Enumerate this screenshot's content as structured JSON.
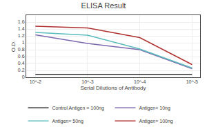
{
  "chart_data": {
    "type": "line",
    "title": "ELISA Result",
    "xlabel": "Serial Dilutions of Antibody",
    "ylabel": "O.D.",
    "x": [
      0.01,
      0.001,
      0.0001,
      1e-05
    ],
    "series": [
      {
        "name": "Control Antigen = 100ng",
        "color": "#2e2e2e",
        "values": [
          0.08,
          0.08,
          0.08,
          0.08
        ]
      },
      {
        "name": "Antigen= 10ng",
        "color": "#7b68b0",
        "values": [
          1.23,
          0.98,
          0.8,
          0.25
        ]
      },
      {
        "name": "Antigen= 50ng",
        "color": "#5bbcbc",
        "values": [
          1.3,
          1.22,
          0.82,
          0.27
        ]
      },
      {
        "name": "Antigen= 100ng",
        "color": "#b03030",
        "values": [
          1.48,
          1.43,
          1.15,
          0.37
        ]
      }
    ],
    "log": "x",
    "xlim": [
      0.015,
      7e-06
    ],
    "xticks": [
      {
        "value": 0.01,
        "label": "10^-2"
      },
      {
        "value": 0.001,
        "label": "10^-3"
      },
      {
        "value": 0.0001,
        "label": "10^-4"
      },
      {
        "value": 1e-05,
        "label": "10^-5"
      }
    ],
    "ylim": [
      0,
      1.8
    ],
    "yticks": [
      0,
      0.2,
      0.4,
      0.6,
      0.8,
      1,
      1.2,
      1.4,
      1.6
    ],
    "grid": true,
    "legend": "bottom"
  }
}
